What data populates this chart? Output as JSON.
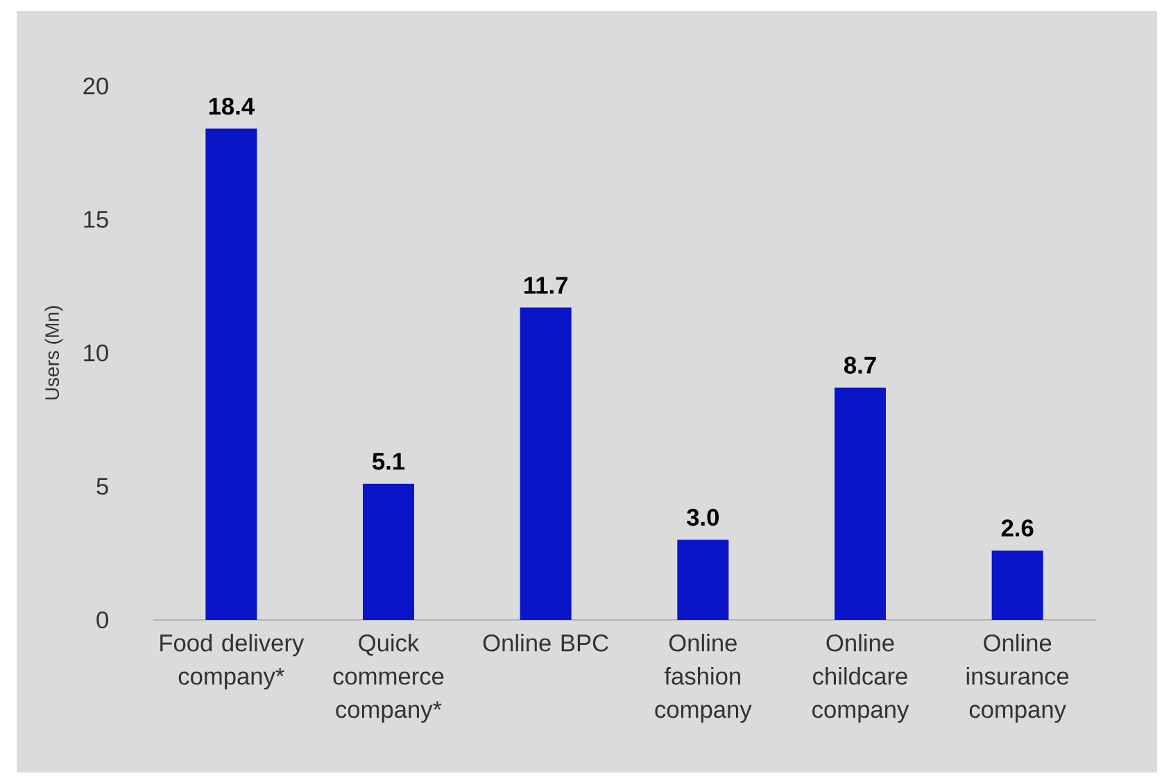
{
  "chart_data": {
    "type": "bar",
    "ylabel": "Users (Mn)",
    "categories": [
      "Food delivery company*",
      "Quick commerce company*",
      "Online BPC",
      "Online fashion company",
      "Online childcare company",
      "Online insurance company"
    ],
    "values": [
      18.4,
      5.1,
      11.7,
      3.0,
      8.7,
      2.6
    ],
    "value_labels": [
      "18.4",
      "5.1",
      "11.7",
      "3.0",
      "8.7",
      "2.6"
    ],
    "color": "#0a14c8",
    "ylim": [
      0,
      20
    ],
    "yticks": [
      0,
      5,
      10,
      15,
      20
    ]
  }
}
